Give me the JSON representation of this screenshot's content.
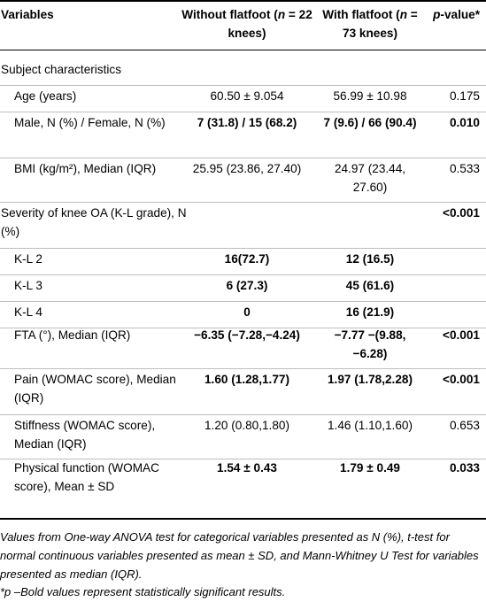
{
  "header": {
    "variables": "Variables",
    "without_a": "Without flatfoot (",
    "without_n": "n",
    "without_b": " = 22 knees)",
    "with_a": "With flatfoot (",
    "with_n": "n",
    "with_b": " = 73 knees)",
    "pvalue_p": "p",
    "pvalue_rest": "-value*"
  },
  "rows": [
    {
      "id": "subject",
      "label": "Subject characteristics",
      "section": true
    },
    {
      "id": "age",
      "label": "Age (years)",
      "without": "60.50 ± 9.054",
      "with": "56.99 ± 10.98",
      "p": "0.175",
      "bold": false
    },
    {
      "id": "sex",
      "label": "Male, N (%) / Female, N (%)",
      "without": "7 (31.8) / 15 (68.2)",
      "with": "7 (9.6) / 66 (90.4)",
      "p": "0.010",
      "bold": true
    },
    {
      "id": "bmi",
      "label": "BMI (kg/m²), Median (IQR)",
      "without": "25.95 (23.86, 27.40)",
      "with": "24.97 (23.44, 27.60)",
      "p": "0.533",
      "bold": false
    },
    {
      "id": "severity",
      "label": "Severity of knee OA (K-L grade), N (%)",
      "p": "<0.001",
      "section": true
    },
    {
      "id": "kl2",
      "label": "K-L 2",
      "without": "16(72.7)",
      "with": "12 (16.5)",
      "bold": true
    },
    {
      "id": "kl3",
      "label": "K-L 3",
      "without": "6 (27.3)",
      "with": "45 (61.6)",
      "bold": true
    },
    {
      "id": "kl4",
      "label": "K-L 4",
      "without": "0",
      "with": "16 (21.9)",
      "bold": true
    },
    {
      "id": "fta",
      "label": "FTA (°), Median (IQR)",
      "without": "−6.35 (−7.28,−4.24)",
      "with": "−7.77 −(9.88, −6.28)",
      "p": "<0.001",
      "bold": true
    },
    {
      "id": "pain",
      "label": "Pain (WOMAC score), Median (IQR)",
      "without": "1.60 (1.28,1.77)",
      "with": "1.97 (1.78,2.28)",
      "p": "<0.001",
      "bold": true
    },
    {
      "id": "stiffness",
      "label": "Stiffness (WOMAC score), Median (IQR)",
      "without": "1.20 (0.80,1.80)",
      "with": "1.46 (1.10,1.60)",
      "p": "0.653",
      "bold": false
    },
    {
      "id": "physical",
      "label": "Physical function (WOMAC score), Mean ± SD",
      "without": "1.54 ± 0.43",
      "with": "1.79 ± 0.49",
      "p": "0.033",
      "bold": true
    }
  ],
  "footnotes": {
    "note1": "Values from One-way ANOVA test for categorical variables presented as N (%), t-test for normal continuous variables presented as mean ± SD, and Mann-Whitney U Test for variables presented as median (IQR).",
    "note2": "*p –Bold values represent statistically significant results."
  }
}
